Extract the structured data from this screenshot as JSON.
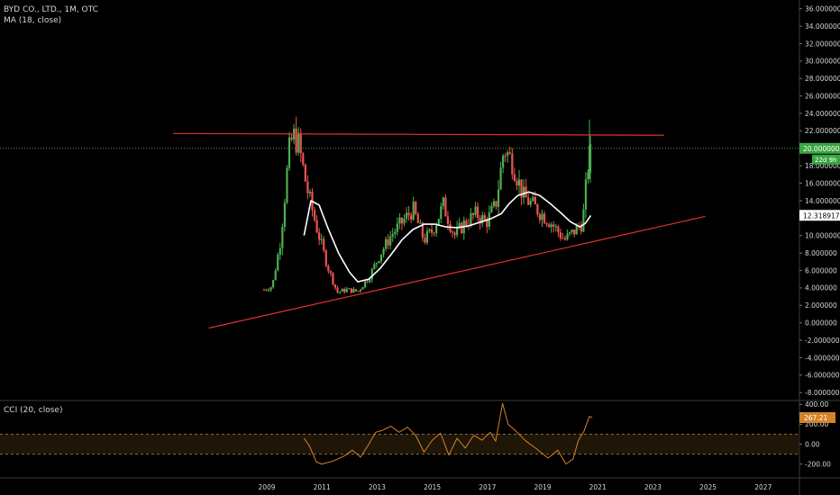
{
  "header": {
    "symbol_line": "BYD CO., LTD., 1M, OTC",
    "ma_line": "MA (18, close)",
    "cci_line": "CCI (20, close)"
  },
  "colors": {
    "background": "#000000",
    "up_candle": "#26a69a",
    "up_candle_tv": "#4caf50",
    "down_candle": "#ef5350",
    "ma_line": "#ffffff",
    "trendline": "#e0312d",
    "cci_line": "#d4822a",
    "price_label_green": "#3aa542",
    "price_label_gray": "#ffffff"
  },
  "chart_data": [
    {
      "type": "candlestick",
      "title": "BYD CO., LTD., 1M, OTC",
      "x_ticks": [
        "2009",
        "2011",
        "2013",
        "2015",
        "2017",
        "2019",
        "2021",
        "2023",
        "2025",
        "2027"
      ],
      "y_ticks": [
        "36.000000",
        "34.000000",
        "32.000000",
        "30.000000",
        "28.000000",
        "26.000000",
        "24.000000",
        "22.000000",
        "20.000000",
        "18.000000",
        "16.000000",
        "14.000000",
        "12.000000",
        "10.000000",
        "8.000000",
        "6.000000",
        "4.000000",
        "2.000000",
        "0.000000",
        "-2.000000",
        "-4.000000",
        "-6.000000",
        "-8.000000"
      ],
      "ylim": [
        -8.8,
        37
      ],
      "x_start_year": 2009,
      "x_end_year": 2027.8,
      "last_price_label": "20.000000",
      "countdown_label": "22d 9h",
      "ma_value_label": "12.318917",
      "reference_line_value": 20.0,
      "series": [
        {
          "name": "price",
          "anchors": [
            [
              2008.9,
              3.8
            ],
            [
              2009.2,
              4.2
            ],
            [
              2009.5,
              9.5
            ],
            [
              2009.8,
              19.5
            ],
            [
              2009.95,
              21.5
            ],
            [
              2010.15,
              20.5
            ],
            [
              2010.45,
              15.5
            ],
            [
              2010.8,
              11.0
            ],
            [
              2011.2,
              6.5
            ],
            [
              2011.55,
              3.5
            ],
            [
              2011.9,
              3.8
            ],
            [
              2012.3,
              3.6
            ],
            [
              2012.7,
              5.2
            ],
            [
              2013.1,
              7.8
            ],
            [
              2013.5,
              10.0
            ],
            [
              2013.9,
              11.5
            ],
            [
              2014.3,
              13.0
            ],
            [
              2014.7,
              9.5
            ],
            [
              2015.0,
              10.5
            ],
            [
              2015.4,
              13.5
            ],
            [
              2015.8,
              10.0
            ],
            [
              2016.2,
              11.5
            ],
            [
              2016.6,
              12.5
            ],
            [
              2016.95,
              11.5
            ],
            [
              2017.3,
              13.5
            ],
            [
              2017.6,
              20.0
            ],
            [
              2017.9,
              18.5
            ],
            [
              2018.3,
              14.5
            ],
            [
              2018.8,
              13.0
            ],
            [
              2019.3,
              11.5
            ],
            [
              2019.8,
              9.5
            ],
            [
              2020.15,
              10.5
            ],
            [
              2020.45,
              11.5
            ],
            [
              2020.65,
              18.0
            ],
            [
              2020.78,
              20.0
            ]
          ]
        },
        {
          "name": "MA (18, close)",
          "points": [
            [
              2010.35,
              10.0
            ],
            [
              2010.6,
              14.0
            ],
            [
              2010.9,
              13.5
            ],
            [
              2011.2,
              11.0
            ],
            [
              2011.6,
              8.0
            ],
            [
              2012.0,
              5.8
            ],
            [
              2012.3,
              4.7
            ],
            [
              2012.7,
              5.0
            ],
            [
              2013.1,
              6.2
            ],
            [
              2013.5,
              7.8
            ],
            [
              2013.9,
              9.5
            ],
            [
              2014.3,
              10.7
            ],
            [
              2014.7,
              11.3
            ],
            [
              2015.1,
              11.3
            ],
            [
              2015.5,
              11.0
            ],
            [
              2015.9,
              10.9
            ],
            [
              2016.3,
              11.1
            ],
            [
              2016.7,
              11.5
            ],
            [
              2017.1,
              11.9
            ],
            [
              2017.5,
              12.5
            ],
            [
              2017.8,
              13.7
            ],
            [
              2018.1,
              14.6
            ],
            [
              2018.5,
              15.0
            ],
            [
              2018.9,
              14.6
            ],
            [
              2019.3,
              13.6
            ],
            [
              2019.7,
              12.5
            ],
            [
              2020.0,
              11.6
            ],
            [
              2020.35,
              11.0
            ],
            [
              2020.55,
              11.4
            ],
            [
              2020.75,
              12.3
            ]
          ]
        }
      ],
      "annotations": [
        {
          "name": "resistance-line",
          "from": [
            2005.6,
            21.7
          ],
          "to": [
            2023.4,
            21.5
          ]
        },
        {
          "name": "support-line",
          "from": [
            2006.9,
            -0.6
          ],
          "to": [
            2024.9,
            12.2
          ]
        }
      ]
    },
    {
      "type": "line",
      "title": "CCI (20, close)",
      "y_ticks": [
        "400.00",
        "200.00",
        "0.00",
        "-200.00"
      ],
      "ylim": [
        -330,
        430
      ],
      "value_label": "267.21",
      "bands": [
        100,
        -100
      ],
      "series": [
        {
          "name": "CCI (20, close)",
          "points": [
            [
              2010.35,
              60
            ],
            [
              2010.55,
              -20
            ],
            [
              2010.8,
              -180
            ],
            [
              2011.0,
              -200
            ],
            [
              2011.4,
              -170
            ],
            [
              2011.8,
              -120
            ],
            [
              2012.1,
              -60
            ],
            [
              2012.4,
              -130
            ],
            [
              2012.7,
              0
            ],
            [
              2012.95,
              120
            ],
            [
              2013.2,
              140
            ],
            [
              2013.5,
              180
            ],
            [
              2013.8,
              120
            ],
            [
              2014.1,
              170
            ],
            [
              2014.4,
              90
            ],
            [
              2014.7,
              -80
            ],
            [
              2015.0,
              40
            ],
            [
              2015.3,
              110
            ],
            [
              2015.6,
              -110
            ],
            [
              2015.9,
              60
            ],
            [
              2016.2,
              -40
            ],
            [
              2016.5,
              90
            ],
            [
              2016.8,
              40
            ],
            [
              2017.1,
              120
            ],
            [
              2017.3,
              30
            ],
            [
              2017.55,
              410
            ],
            [
              2017.75,
              200
            ],
            [
              2018.0,
              140
            ],
            [
              2018.4,
              30
            ],
            [
              2018.8,
              -50
            ],
            [
              2019.2,
              -140
            ],
            [
              2019.55,
              -60
            ],
            [
              2019.85,
              -200
            ],
            [
              2020.1,
              -150
            ],
            [
              2020.3,
              40
            ],
            [
              2020.5,
              130
            ],
            [
              2020.7,
              280
            ],
            [
              2020.8,
              267
            ]
          ]
        }
      ]
    }
  ]
}
